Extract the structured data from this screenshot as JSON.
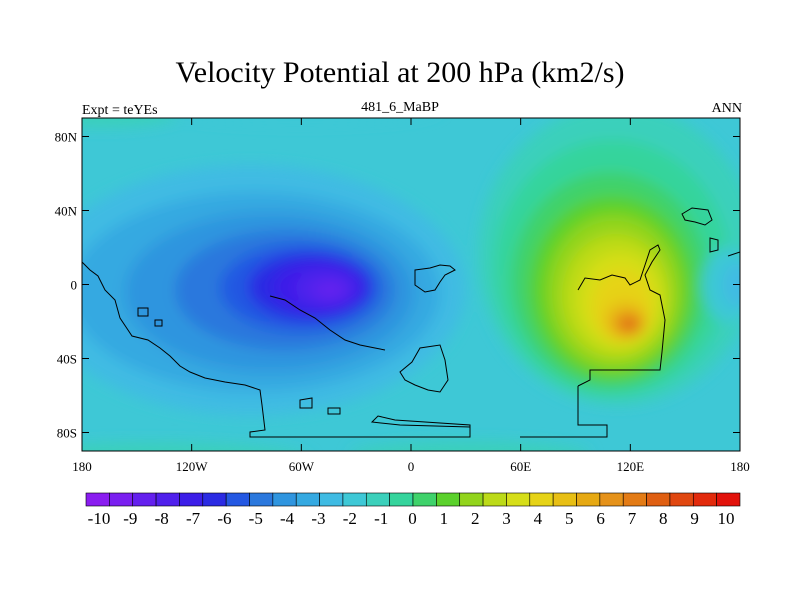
{
  "chart_data": {
    "type": "heatmap",
    "title": "Velocity Potential at 200 hPa (km2/s)",
    "left_string": "Expt = teYEs",
    "center_string": "481_6_MaBP",
    "right_string": "ANN",
    "x_ticks": [
      "180",
      "120W",
      "60W",
      "0",
      "60E",
      "120E",
      "180"
    ],
    "x_tick_values": [
      -180,
      -120,
      -60,
      0,
      60,
      120,
      180
    ],
    "y_ticks": [
      "80N",
      "40N",
      "0",
      "40S",
      "80S"
    ],
    "y_tick_values": [
      80,
      40,
      0,
      -40,
      -80
    ],
    "xlim": [
      -180,
      180
    ],
    "ylim": [
      -90,
      90
    ],
    "colorbar": {
      "levels": [
        -10,
        -9,
        -8,
        -7,
        -6,
        -5,
        -4,
        -3,
        -2,
        -1,
        0,
        1,
        2,
        3,
        4,
        5,
        6,
        7,
        8,
        9,
        10
      ],
      "labels": [
        "-10",
        "-9",
        "-8",
        "-7",
        "-6",
        "-5",
        "-4",
        "-3",
        "-2",
        "-1",
        "0",
        "1",
        "2",
        "3",
        "4",
        "5",
        "6",
        "7",
        "8",
        "9",
        "10"
      ],
      "colors": [
        "#8a1df0",
        "#7a1ff0",
        "#6420ee",
        "#5020ec",
        "#3c1ee8",
        "#2b2be3",
        "#2458e2",
        "#2b78dd",
        "#2f95df",
        "#35a9e1",
        "#3fbbe3",
        "#3ec8d6",
        "#3bd0bb",
        "#35d49c",
        "#3fd26b",
        "#5bd12c",
        "#92d41c",
        "#bcda18",
        "#d6de19",
        "#e6d317",
        "#e8bf14",
        "#e6a913",
        "#e5921a",
        "#e37b15",
        "#df5f12",
        "#e04710",
        "#e22a0c",
        "#e2120b"
      ]
    },
    "field_extremes": [
      {
        "name": "min",
        "lon": -50,
        "lat": 0,
        "value": -9
      },
      {
        "name": "max",
        "lon": 120,
        "lat": -22,
        "value": 7
      }
    ]
  }
}
